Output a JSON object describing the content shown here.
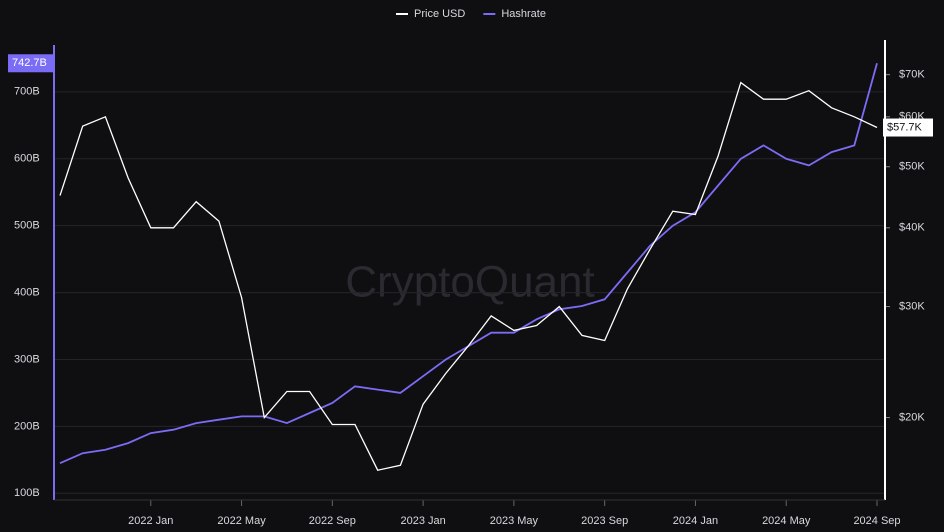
{
  "chart_data": {
    "type": "line",
    "watermark": "CryptoQuant",
    "x": [
      "2021-09",
      "2021-10",
      "2021-11",
      "2021-12",
      "2022-01",
      "2022-02",
      "2022-03",
      "2022-04",
      "2022-05",
      "2022-06",
      "2022-07",
      "2022-08",
      "2022-09",
      "2022-10",
      "2022-11",
      "2022-12",
      "2023-01",
      "2023-02",
      "2023-03",
      "2023-04",
      "2023-05",
      "2023-06",
      "2023-07",
      "2023-08",
      "2023-09",
      "2023-10",
      "2023-11",
      "2023-12",
      "2024-01",
      "2024-02",
      "2024-03",
      "2024-04",
      "2024-05",
      "2024-06",
      "2024-07",
      "2024-08",
      "2024-09"
    ],
    "xticks": [
      {
        "value": "2022-01",
        "label": "2022 Jan"
      },
      {
        "value": "2022-05",
        "label": "2022 May"
      },
      {
        "value": "2022-09",
        "label": "2022 Sep"
      },
      {
        "value": "2023-01",
        "label": "2023 Jan"
      },
      {
        "value": "2023-05",
        "label": "2023 May"
      },
      {
        "value": "2023-09",
        "label": "2023 Sep"
      },
      {
        "value": "2024-01",
        "label": "2024 Jan"
      },
      {
        "value": "2024-05",
        "label": "2024 May"
      },
      {
        "value": "2024-09",
        "label": "2024 Sep"
      }
    ],
    "ylim": [
      90,
      770
    ],
    "yticks": [
      {
        "value": 100,
        "label": "100B"
      },
      {
        "value": 200,
        "label": "200B"
      },
      {
        "value": 300,
        "label": "300B"
      },
      {
        "value": 400,
        "label": "400B"
      },
      {
        "value": 500,
        "label": "500B"
      },
      {
        "value": 600,
        "label": "600B"
      },
      {
        "value": 700,
        "label": "700B"
      }
    ],
    "y2lim": [
      14800,
      78000
    ],
    "y2log": true,
    "y2ticks": [
      {
        "value": 20000,
        "label": "$20K"
      },
      {
        "value": 30000,
        "label": "$30K"
      },
      {
        "value": 40000,
        "label": "$40K"
      },
      {
        "value": 50000,
        "label": "$50K"
      },
      {
        "value": 60000,
        "label": "$60K"
      },
      {
        "value": 70000,
        "label": "$70K"
      }
    ],
    "grid": true,
    "legend": "top",
    "series": [
      {
        "name": "Price USD",
        "color": "#ffffff",
        "axis": "y2",
        "last_value_label": "$57.7K",
        "values": [
          45000,
          58000,
          60000,
          48000,
          40000,
          40000,
          44000,
          41000,
          31000,
          20000,
          22000,
          22000,
          19500,
          19500,
          16500,
          16800,
          21000,
          23500,
          26000,
          29000,
          27500,
          28000,
          30000,
          27000,
          26500,
          32000,
          37000,
          42500,
          42000,
          52000,
          68000,
          64000,
          64000,
          66000,
          62000,
          60000,
          57700
        ]
      },
      {
        "name": "Hashrate",
        "color": "#7b6cf6",
        "axis": "y",
        "last_value_label": "742.7B",
        "values": [
          145,
          160,
          165,
          175,
          190,
          195,
          205,
          210,
          215,
          215,
          205,
          220,
          235,
          260,
          255,
          250,
          275,
          300,
          320,
          340,
          340,
          360,
          375,
          380,
          390,
          430,
          470,
          500,
          520,
          560,
          600,
          620,
          600,
          590,
          610,
          620,
          742.7
        ]
      }
    ]
  }
}
